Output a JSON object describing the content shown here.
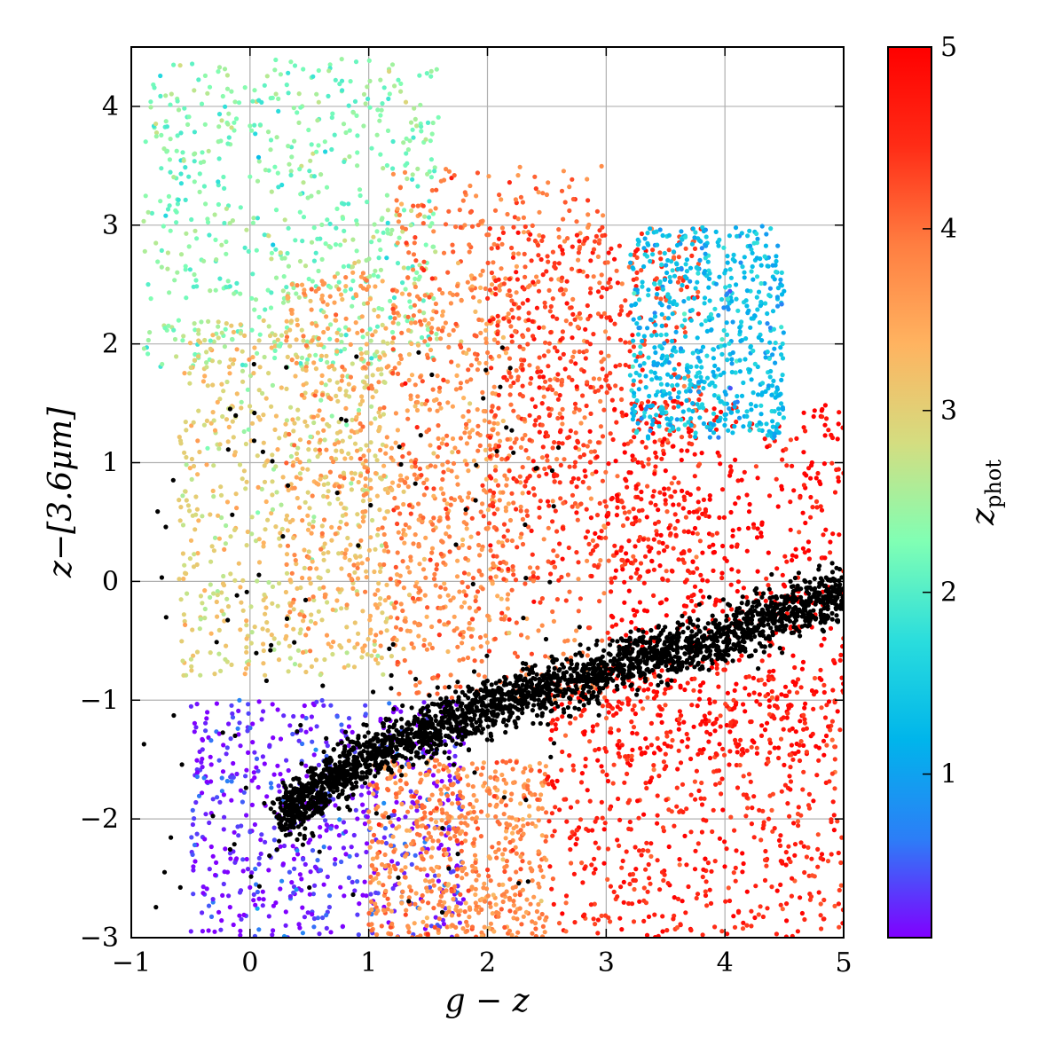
{
  "chart_data": {
    "type": "scatter",
    "xlabel": "g − z",
    "ylabel": "z−[3.6μm]",
    "xlim": [
      -1,
      5
    ],
    "ylim": [
      -3,
      4.5
    ],
    "xticks": [
      -1,
      0,
      1,
      2,
      3,
      4,
      5
    ],
    "yticks": [
      -3,
      -2,
      -1,
      0,
      1,
      2,
      3,
      4
    ],
    "xtick_labels": [
      "−1",
      "0",
      "1",
      "2",
      "3",
      "4",
      "5"
    ],
    "ytick_labels": [
      "−3",
      "−2",
      "−1",
      "0",
      "1",
      "2",
      "3",
      "4"
    ],
    "grid": true,
    "colorbar": {
      "label": "zphot",
      "label_main": "z",
      "label_sub": "phot",
      "range": [
        0.1,
        5
      ],
      "ticks": [
        1,
        2,
        3,
        4,
        5
      ],
      "tick_labels": [
        "1",
        "2",
        "3",
        "4",
        "5"
      ],
      "colormap": "rainbow",
      "colors": [
        "#8000ff",
        "#2c7ef7",
        "#00b5eb",
        "#2adddd",
        "#80ffb4",
        "#d4dd80",
        "#ffb360",
        "#ff7e41",
        "#ff2c16",
        "#ff0000"
      ]
    },
    "series": [
      {
        "group": "galaxies",
        "color_by": "zphot",
        "regions": [
          {
            "z": 2.3,
            "x_range": [
              -0.9,
              1.6
            ],
            "y_range": [
              1.8,
              4.4
            ]
          },
          {
            "z": 3.0,
            "x_range": [
              -0.6,
              1.2
            ],
            "y_range": [
              -0.8,
              2.2
            ]
          },
          {
            "z": 3.6,
            "x_range": [
              0.3,
              2.2
            ],
            "y_range": [
              -0.6,
              2.6
            ]
          },
          {
            "z": 4.0,
            "x_range": [
              1.2,
              3.0
            ],
            "y_range": [
              -1.0,
              3.5
            ]
          },
          {
            "z": 4.4,
            "x_range": [
              2.0,
              3.8
            ],
            "y_range": [
              0.0,
              3.0
            ]
          },
          {
            "z": 4.9,
            "x_range": [
              3.0,
              5.0
            ],
            "y_range": [
              -1.5,
              1.5
            ]
          },
          {
            "z": 1.3,
            "x_range": [
              3.2,
              4.5
            ],
            "y_range": [
              1.2,
              3.0
            ]
          },
          {
            "z": 0.2,
            "x_range": [
              -0.5,
              1.8
            ],
            "y_range": [
              -3.0,
              -1.0
            ]
          },
          {
            "z": 3.8,
            "x_range": [
              1.0,
              2.5
            ],
            "y_range": [
              -3.0,
              -1.5
            ]
          },
          {
            "z": 4.6,
            "x_range": [
              2.5,
              5.0
            ],
            "y_range": [
              -3.0,
              -0.8
            ]
          }
        ]
      },
      {
        "group": "stellar locus",
        "color": "#000000",
        "locus": [
          [
            0.25,
            -2.0
          ],
          [
            1.0,
            -1.45
          ],
          [
            2.0,
            -1.05
          ],
          [
            3.0,
            -0.75
          ],
          [
            4.0,
            -0.45
          ],
          [
            5.0,
            -0.1
          ]
        ],
        "width": 0.25
      }
    ]
  }
}
